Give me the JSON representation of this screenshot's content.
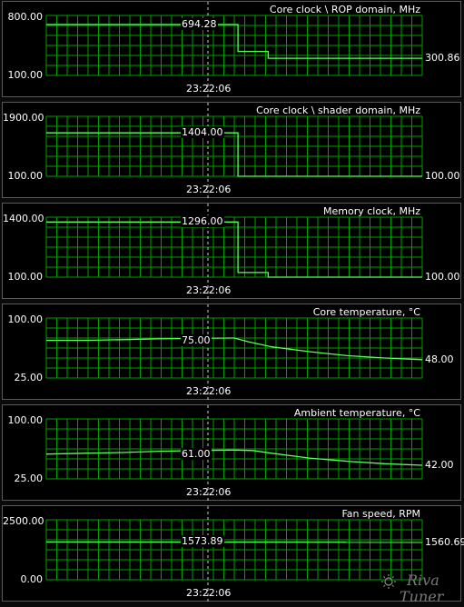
{
  "panels": [
    {
      "title": "Core clock \\ ROP domain, MHz",
      "y_max": "800.00",
      "y_min": "100.00",
      "cursor_value": "694.28",
      "current_value": "300.86",
      "cursor_time": "23:22:06",
      "range": [
        100,
        800
      ],
      "trace": [
        [
          0,
          694.28
        ],
        [
          0.51,
          694.28
        ],
        [
          0.51,
          380
        ],
        [
          0.59,
          380
        ],
        [
          0.59,
          300.86
        ],
        [
          1,
          300.86
        ]
      ]
    },
    {
      "title": "Core clock \\ shader domain, MHz",
      "y_max": "1900.00",
      "y_min": "100.00",
      "cursor_value": "1404.00",
      "current_value": "100.00",
      "cursor_time": "23:22:06",
      "range": [
        100,
        1900
      ],
      "trace": [
        [
          0,
          1404
        ],
        [
          0.51,
          1404
        ],
        [
          0.51,
          100
        ],
        [
          1,
          100
        ]
      ]
    },
    {
      "title": "Memory clock, MHz",
      "y_max": "1400.00",
      "y_min": "100.00",
      "cursor_value": "1296.00",
      "current_value": "100.00",
      "cursor_time": "23:22:06",
      "range": [
        100,
        1400
      ],
      "trace": [
        [
          0,
          1296
        ],
        [
          0.51,
          1296
        ],
        [
          0.51,
          200
        ],
        [
          0.59,
          200
        ],
        [
          0.59,
          100
        ],
        [
          1,
          100
        ]
      ]
    },
    {
      "title": "Core temperature, °C",
      "y_max": "100.00",
      "y_min": "25.00",
      "cursor_value": "75.00",
      "current_value": "48.00",
      "cursor_time": "23:22:06",
      "range": [
        25,
        100
      ],
      "trace": [
        [
          0,
          72
        ],
        [
          0.1,
          72
        ],
        [
          0.2,
          73
        ],
        [
          0.3,
          74
        ],
        [
          0.4,
          74.5
        ],
        [
          0.49,
          75
        ],
        [
          0.5,
          75
        ],
        [
          0.54,
          70
        ],
        [
          0.6,
          64
        ],
        [
          0.7,
          58
        ],
        [
          0.8,
          53
        ],
        [
          0.9,
          50
        ],
        [
          1,
          48
        ]
      ]
    },
    {
      "title": "Ambient temperature, °C",
      "y_max": "100.00",
      "y_min": "25.00",
      "cursor_value": "61.00",
      "current_value": "42.00",
      "cursor_time": "23:22:06",
      "range": [
        25,
        100
      ],
      "trace": [
        [
          0,
          56
        ],
        [
          0.1,
          57
        ],
        [
          0.2,
          58
        ],
        [
          0.3,
          59.5
        ],
        [
          0.4,
          60.5
        ],
        [
          0.5,
          61
        ],
        [
          0.55,
          60.5
        ],
        [
          0.6,
          57
        ],
        [
          0.7,
          51
        ],
        [
          0.8,
          47
        ],
        [
          0.9,
          44
        ],
        [
          1,
          42
        ]
      ]
    },
    {
      "title": "Fan speed, RPM",
      "y_max": "2500.00",
      "y_min": "0.00",
      "cursor_value": "1573.89",
      "current_value": "1560.69",
      "cursor_time": "23:22:06",
      "range": [
        0,
        2500
      ],
      "trace": [
        [
          0,
          1573.89
        ],
        [
          1,
          1560.69
        ]
      ]
    }
  ],
  "watermark": {
    "text": "RivaTuner"
  },
  "colors": {
    "grid": "#00a000",
    "trace": "#5aff5a",
    "cursor": "#d0d0d0"
  }
}
